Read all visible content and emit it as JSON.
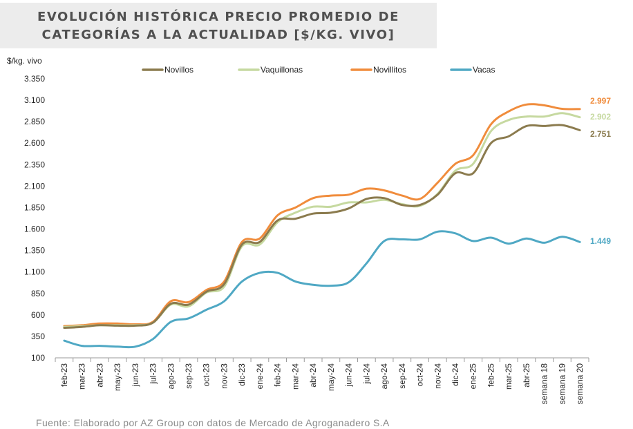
{
  "title": {
    "line1": "EVOLUCIÓN HISTÓRICA PRECIO PROMEDIO DE",
    "line2": "CATEGORÍAS A LA ACTUALIDAD [$/KG. VIVO]"
  },
  "source": "Fuente: Elaborado por AZ Group con datos de Mercado de Agroganadero S.A",
  "colors": {
    "novillos": "#8b7b4e",
    "vaquillonas": "#c6d9a0",
    "novillitos": "#f08c3c",
    "vacas": "#4fa8c4"
  },
  "chart_data": {
    "type": "line",
    "ylabel": "$/kg. vivo",
    "ylim": [
      100,
      3350
    ],
    "yticks": [
      "3.350",
      "3.100",
      "2.850",
      "2.600",
      "2.350",
      "2.100",
      "1.850",
      "1.600",
      "1.350",
      "1.100",
      "850",
      "600",
      "350",
      "100"
    ],
    "legend_position": "top",
    "categories": [
      "feb-23",
      "mar-23",
      "abr-23",
      "may-23",
      "jun-23",
      "jul-23",
      "ago-23",
      "sep-23",
      "oct-23",
      "nov-23",
      "dic-23",
      "ene-24",
      "feb-24",
      "mar-24",
      "abr-24",
      "may-24",
      "jun-24",
      "jul-24",
      "ago-24",
      "sep-24",
      "oct-24",
      "nov-24",
      "dic-24",
      "ene-25",
      "feb-25",
      "mar-25",
      "abr-25",
      "semana 18",
      "semana 19",
      "semana 20"
    ],
    "series": [
      {
        "name": "Novillos",
        "color_key": "novillos",
        "values": [
          450,
          460,
          480,
          475,
          475,
          510,
          730,
          720,
          870,
          960,
          1420,
          1450,
          1700,
          1720,
          1780,
          1790,
          1840,
          1950,
          1960,
          1880,
          1880,
          2000,
          2250,
          2250,
          2600,
          2680,
          2800,
          2800,
          2810,
          2751
        ],
        "end_label": "2.751"
      },
      {
        "name": "Vaquillonas",
        "color_key": "vaquillonas",
        "values": [
          460,
          470,
          480,
          480,
          480,
          510,
          720,
          700,
          860,
          930,
          1400,
          1420,
          1680,
          1790,
          1860,
          1860,
          1910,
          1910,
          1940,
          1890,
          1870,
          2010,
          2280,
          2360,
          2740,
          2870,
          2910,
          2910,
          2950,
          2902
        ],
        "end_label": "2.902"
      },
      {
        "name": "Novillitos",
        "color_key": "novillitos",
        "values": [
          470,
          480,
          500,
          500,
          490,
          520,
          760,
          750,
          890,
          990,
          1450,
          1490,
          1760,
          1850,
          1960,
          1990,
          2000,
          2070,
          2050,
          1990,
          1950,
          2140,
          2360,
          2460,
          2820,
          2970,
          3050,
          3040,
          3000,
          2997
        ],
        "end_label": "2.997"
      },
      {
        "name": "Vacas",
        "color_key": "vacas",
        "values": [
          300,
          240,
          240,
          230,
          230,
          320,
          520,
          560,
          660,
          760,
          990,
          1090,
          1090,
          990,
          950,
          940,
          980,
          1200,
          1460,
          1480,
          1480,
          1570,
          1550,
          1460,
          1500,
          1430,
          1490,
          1440,
          1510,
          1449
        ],
        "end_label": "1.449"
      }
    ]
  }
}
